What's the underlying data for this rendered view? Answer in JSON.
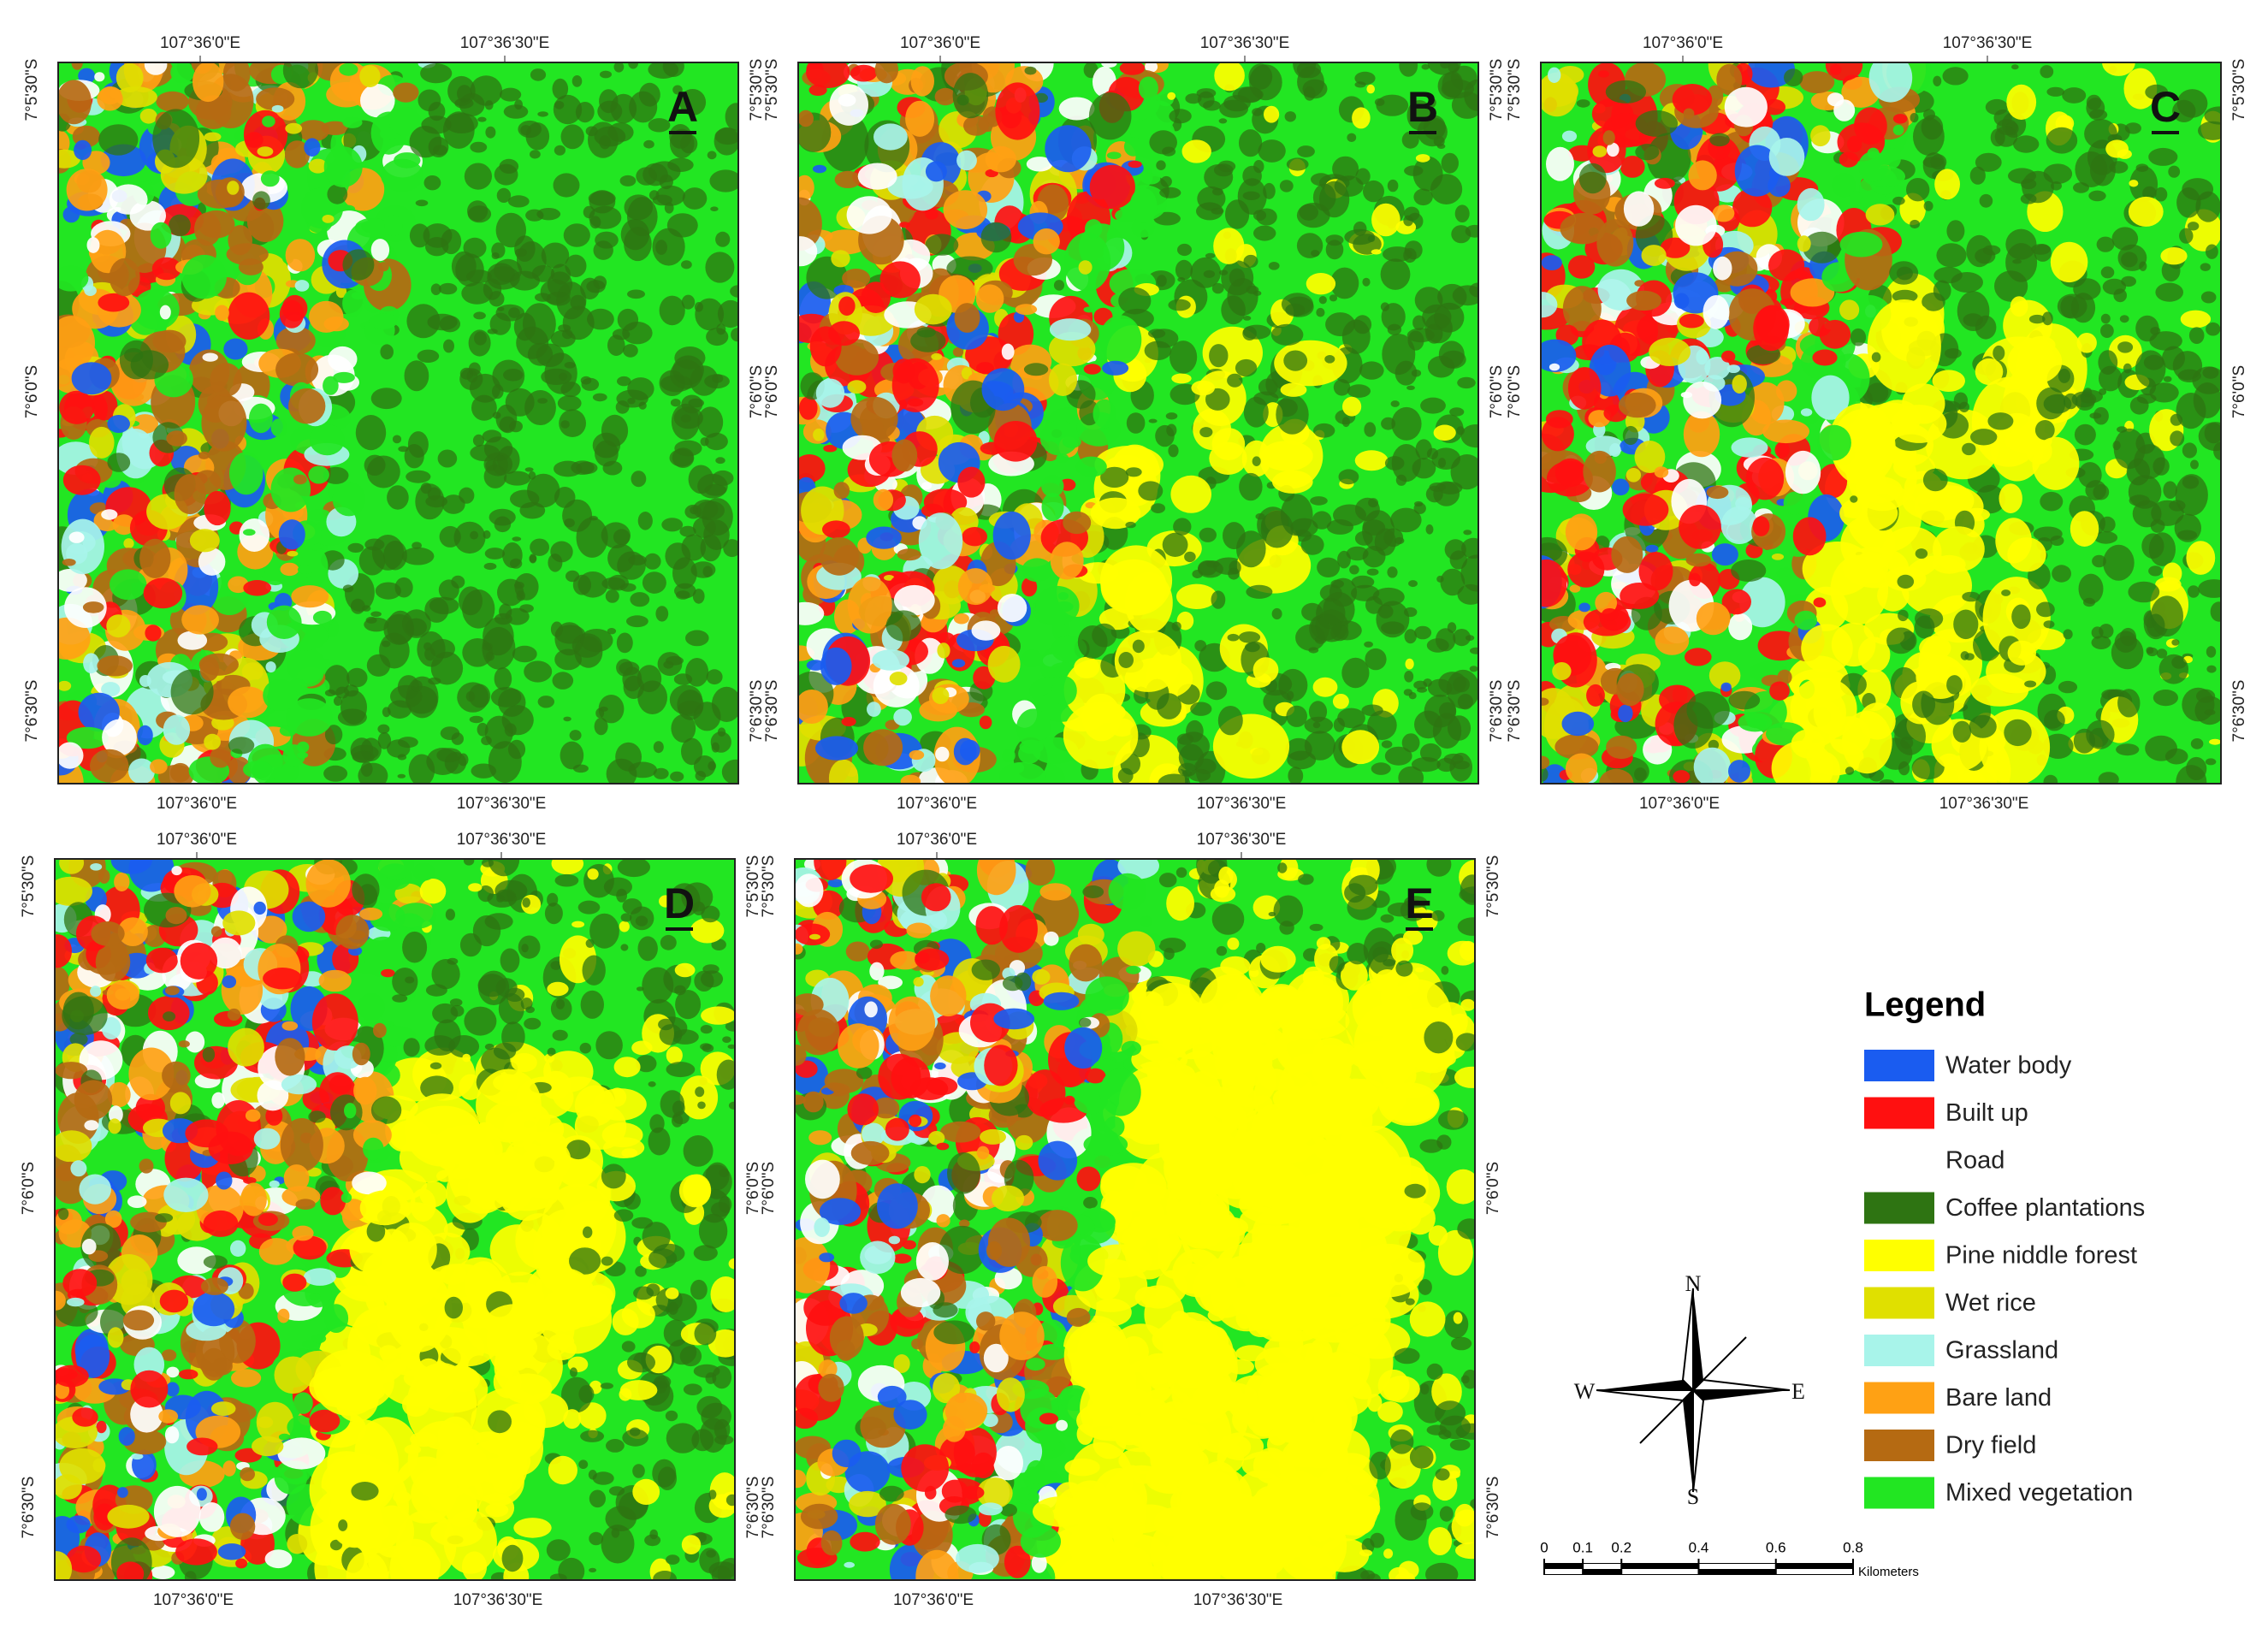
{
  "map_grid": {
    "lon_labels": [
      "107°36'0\"E",
      "107°36'30\"E"
    ],
    "lat_labels": [
      "7°5'30\"S",
      "7°6'0\"S",
      "7°6'30\"S"
    ]
  },
  "panels": [
    {
      "label": "A"
    },
    {
      "label": "B"
    },
    {
      "label": "C"
    },
    {
      "label": "D"
    },
    {
      "label": "E"
    }
  ],
  "legend": {
    "title": "Legend",
    "items": [
      {
        "name": "Water body",
        "color": "#1a5cf0"
      },
      {
        "name": "Built up",
        "color": "#ff1010"
      },
      {
        "name": "Road",
        "color": "#ffffff"
      },
      {
        "name": "Coffee plantations",
        "color": "#2e7412"
      },
      {
        "name": "Pine niddle forest",
        "color": "#ffff00"
      },
      {
        "name": "Wet rice",
        "color": "#e0e000"
      },
      {
        "name": "Grassland",
        "color": "#a8f4ea"
      },
      {
        "name": "Bare land",
        "color": "#ffa114"
      },
      {
        "name": "Dry field",
        "color": "#b56a12"
      },
      {
        "name": "Mixed vegetation",
        "color": "#22e622"
      }
    ]
  },
  "compass": {
    "north": "N",
    "south": "S",
    "east": "E",
    "west": "W"
  },
  "scale_bar": {
    "ticks": [
      0,
      0.1,
      0.2,
      0.4,
      0.6,
      0.8
    ],
    "unit": "Kilometers"
  }
}
